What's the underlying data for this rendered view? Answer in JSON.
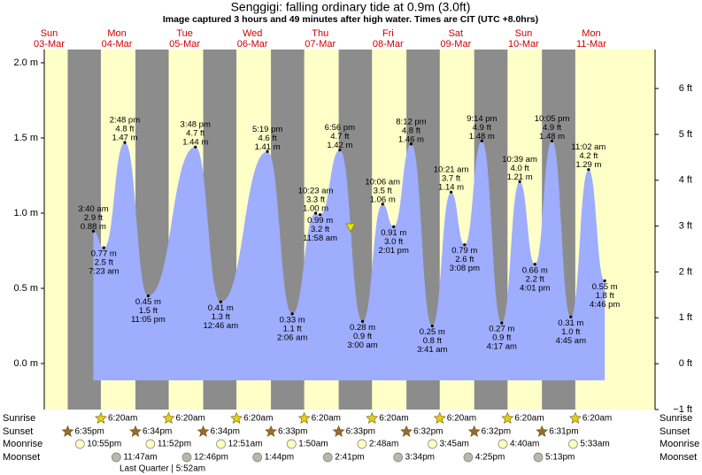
{
  "chart_data": {
    "type": "tide",
    "title": "Senggigi: falling  ordinary tide at 0.9m (3.0ft)",
    "subtitle": "Image captured 3 hours and 49 minutes after high water. Times are CIT (UTC +8.0hrs)",
    "days": [
      {
        "name": "Sun",
        "date": "03-Mar"
      },
      {
        "name": "Mon",
        "date": "04-Mar"
      },
      {
        "name": "Tue",
        "date": "05-Mar"
      },
      {
        "name": "Wed",
        "date": "06-Mar"
      },
      {
        "name": "Thu",
        "date": "07-Mar"
      },
      {
        "name": "Fri",
        "date": "08-Mar"
      },
      {
        "name": "Sat",
        "date": "09-Mar"
      },
      {
        "name": "Sun",
        "date": "10-Mar"
      },
      {
        "name": "Mon",
        "date": "11-Mar"
      }
    ],
    "ylim": [
      -0.306,
      2.088
    ],
    "yticks": [
      {
        "value": 0.0,
        "label": "0.0 m"
      },
      {
        "value": 0.5,
        "label": "0.5 m"
      },
      {
        "value": 1.0,
        "label": "1.0 m"
      },
      {
        "value": 1.5,
        "label": "1.5 m"
      },
      {
        "value": 2.0,
        "label": "2.0 m"
      }
    ],
    "y2lim": [
      -1.0,
      6.85
    ],
    "y2ticks": [
      {
        "value": -1,
        "label": "−1 ft"
      },
      {
        "value": 0,
        "label": "0 ft"
      },
      {
        "value": 1,
        "label": "1 ft"
      },
      {
        "value": 2,
        "label": "2 ft"
      },
      {
        "value": 3,
        "label": "3 ft"
      },
      {
        "value": 4,
        "label": "4 ft"
      },
      {
        "value": 5,
        "label": "5 ft"
      },
      {
        "value": 6,
        "label": "6 ft"
      }
    ],
    "color": "#9eadfd",
    "tides": [
      {
        "day": "04-Mar",
        "time": "3:40 am",
        "m": 0.88,
        "m_label": "0.88 m",
        "ft_label": "2.9 ft"
      },
      {
        "day": "04-Mar",
        "time": "7:23 am",
        "m": 0.77,
        "m_label": "0.77 m",
        "ft_label": "2.5 ft"
      },
      {
        "day": "04-Mar",
        "time": "2:48 pm",
        "m": 1.47,
        "m_label": "1.47 m",
        "ft_label": "4.8 ft"
      },
      {
        "day": "04-Mar",
        "time": "11:05 pm",
        "m": 0.45,
        "m_label": "0.45 m",
        "ft_label": "1.5 ft"
      },
      {
        "day": "05-Mar",
        "time": "3:48 pm",
        "m": 1.44,
        "m_label": "1.44 m",
        "ft_label": "4.7 ft"
      },
      {
        "day": "06-Mar",
        "time": "12:46 am",
        "m": 0.41,
        "m_label": "0.41 m",
        "ft_label": "1.3 ft"
      },
      {
        "day": "06-Mar",
        "time": "5:19 pm",
        "m": 1.41,
        "m_label": "1.41 m",
        "ft_label": "4.6 ft"
      },
      {
        "day": "07-Mar",
        "time": "2:06 am",
        "m": 0.33,
        "m_label": "0.33 m",
        "ft_label": "1.1 ft"
      },
      {
        "day": "07-Mar",
        "time": "10:23 am",
        "m": 1.0,
        "m_label": "1.00 m",
        "ft_label": "3.3 ft"
      },
      {
        "day": "07-Mar",
        "time": "11:58 am",
        "m": 0.99,
        "m_label": "0.99 m",
        "ft_label": "3.2 ft"
      },
      {
        "day": "07-Mar",
        "time": "6:56 pm",
        "m": 1.42,
        "m_label": "1.42 m",
        "ft_label": "4.7 ft"
      },
      {
        "day": "08-Mar",
        "time": "3:00 am",
        "m": 0.28,
        "m_label": "0.28 m",
        "ft_label": "0.9 ft"
      },
      {
        "day": "08-Mar",
        "time": "10:06 am",
        "m": 1.06,
        "m_label": "1.06 m",
        "ft_label": "3.5 ft"
      },
      {
        "day": "08-Mar",
        "time": "2:01 pm",
        "m": 0.91,
        "m_label": "0.91 m",
        "ft_label": "3.0 ft"
      },
      {
        "day": "08-Mar",
        "time": "8:12 pm",
        "m": 1.46,
        "m_label": "1.46 m",
        "ft_label": "4.8 ft"
      },
      {
        "day": "09-Mar",
        "time": "3:41 am",
        "m": 0.25,
        "m_label": "0.25 m",
        "ft_label": "0.8 ft"
      },
      {
        "day": "09-Mar",
        "time": "10:21 am",
        "m": 1.14,
        "m_label": "1.14 m",
        "ft_label": "3.7 ft"
      },
      {
        "day": "09-Mar",
        "time": "3:08 pm",
        "m": 0.79,
        "m_label": "0.79 m",
        "ft_label": "2.6 ft"
      },
      {
        "day": "09-Mar",
        "time": "9:14 pm",
        "m": 1.48,
        "m_label": "1.48 m",
        "ft_label": "4.9 ft"
      },
      {
        "day": "10-Mar",
        "time": "4:17 am",
        "m": 0.27,
        "m_label": "0.27 m",
        "ft_label": "0.9 ft"
      },
      {
        "day": "10-Mar",
        "time": "10:39 am",
        "m": 1.21,
        "m_label": "1.21 m",
        "ft_label": "4.0 ft"
      },
      {
        "day": "10-Mar",
        "time": "4:01 pm",
        "m": 0.66,
        "m_label": "0.66 m",
        "ft_label": "2.2 ft"
      },
      {
        "day": "10-Mar",
        "time": "10:05 pm",
        "m": 1.48,
        "m_label": "1.48 m",
        "ft_label": "4.9 ft"
      },
      {
        "day": "11-Mar",
        "time": "4:45 am",
        "m": 0.31,
        "m_label": "0.31 m",
        "ft_label": "1.0 ft"
      },
      {
        "day": "11-Mar",
        "time": "11:02 am",
        "m": 1.29,
        "m_label": "1.29 m",
        "ft_label": "4.2 ft"
      },
      {
        "day": "11-Mar",
        "time": "4:46 pm",
        "m": 0.55,
        "m_label": "0.55 m",
        "ft_label": "1.8 ft"
      }
    ],
    "now": {
      "day": "07-Mar",
      "time": "10:45 pm",
      "m": 0.9
    },
    "rows": [
      {
        "name": "Sunrise",
        "color": "#e8d000",
        "events": [
          {
            "day": "04-Mar",
            "time": "6:20am"
          },
          {
            "day": "05-Mar",
            "time": "6:20am"
          },
          {
            "day": "06-Mar",
            "time": "6:20am"
          },
          {
            "day": "07-Mar",
            "time": "6:20am"
          },
          {
            "day": "08-Mar",
            "time": "6:20am"
          },
          {
            "day": "09-Mar",
            "time": "6:20am"
          },
          {
            "day": "10-Mar",
            "time": "6:20am"
          },
          {
            "day": "11-Mar",
            "time": "6:20am"
          }
        ]
      },
      {
        "name": "Sunset",
        "color": "#9a6a2a",
        "events": [
          {
            "day": "03-Mar",
            "time": "6:35pm"
          },
          {
            "day": "04-Mar",
            "time": "6:34pm"
          },
          {
            "day": "05-Mar",
            "time": "6:34pm"
          },
          {
            "day": "06-Mar",
            "time": "6:33pm"
          },
          {
            "day": "07-Mar",
            "time": "6:33pm"
          },
          {
            "day": "08-Mar",
            "time": "6:32pm"
          },
          {
            "day": "09-Mar",
            "time": "6:32pm"
          },
          {
            "day": "10-Mar",
            "time": "6:31pm"
          }
        ]
      },
      {
        "name": "Moonrise",
        "color": "#ffffc0",
        "events": [
          {
            "day": "03-Mar",
            "time": "10:55pm"
          },
          {
            "day": "04-Mar",
            "time": "11:52pm"
          },
          {
            "day": "06-Mar",
            "time": "12:51am"
          },
          {
            "day": "07-Mar",
            "time": "1:50am"
          },
          {
            "day": "08-Mar",
            "time": "2:48am"
          },
          {
            "day": "09-Mar",
            "time": "3:45am"
          },
          {
            "day": "10-Mar",
            "time": "4:40am"
          },
          {
            "day": "11-Mar",
            "time": "5:33am"
          }
        ]
      },
      {
        "name": "Moonset",
        "color": "#b8b8a8",
        "events": [
          {
            "day": "04-Mar",
            "time": "11:47am"
          },
          {
            "day": "05-Mar",
            "time": "12:46pm"
          },
          {
            "day": "06-Mar",
            "time": "1:44pm"
          },
          {
            "day": "07-Mar",
            "time": "2:41pm"
          },
          {
            "day": "08-Mar",
            "time": "3:34pm"
          },
          {
            "day": "09-Mar",
            "time": "4:25pm"
          },
          {
            "day": "10-Mar",
            "time": "5:13pm"
          }
        ]
      }
    ],
    "moon_phase": "Last Quarter | 5:52am"
  }
}
